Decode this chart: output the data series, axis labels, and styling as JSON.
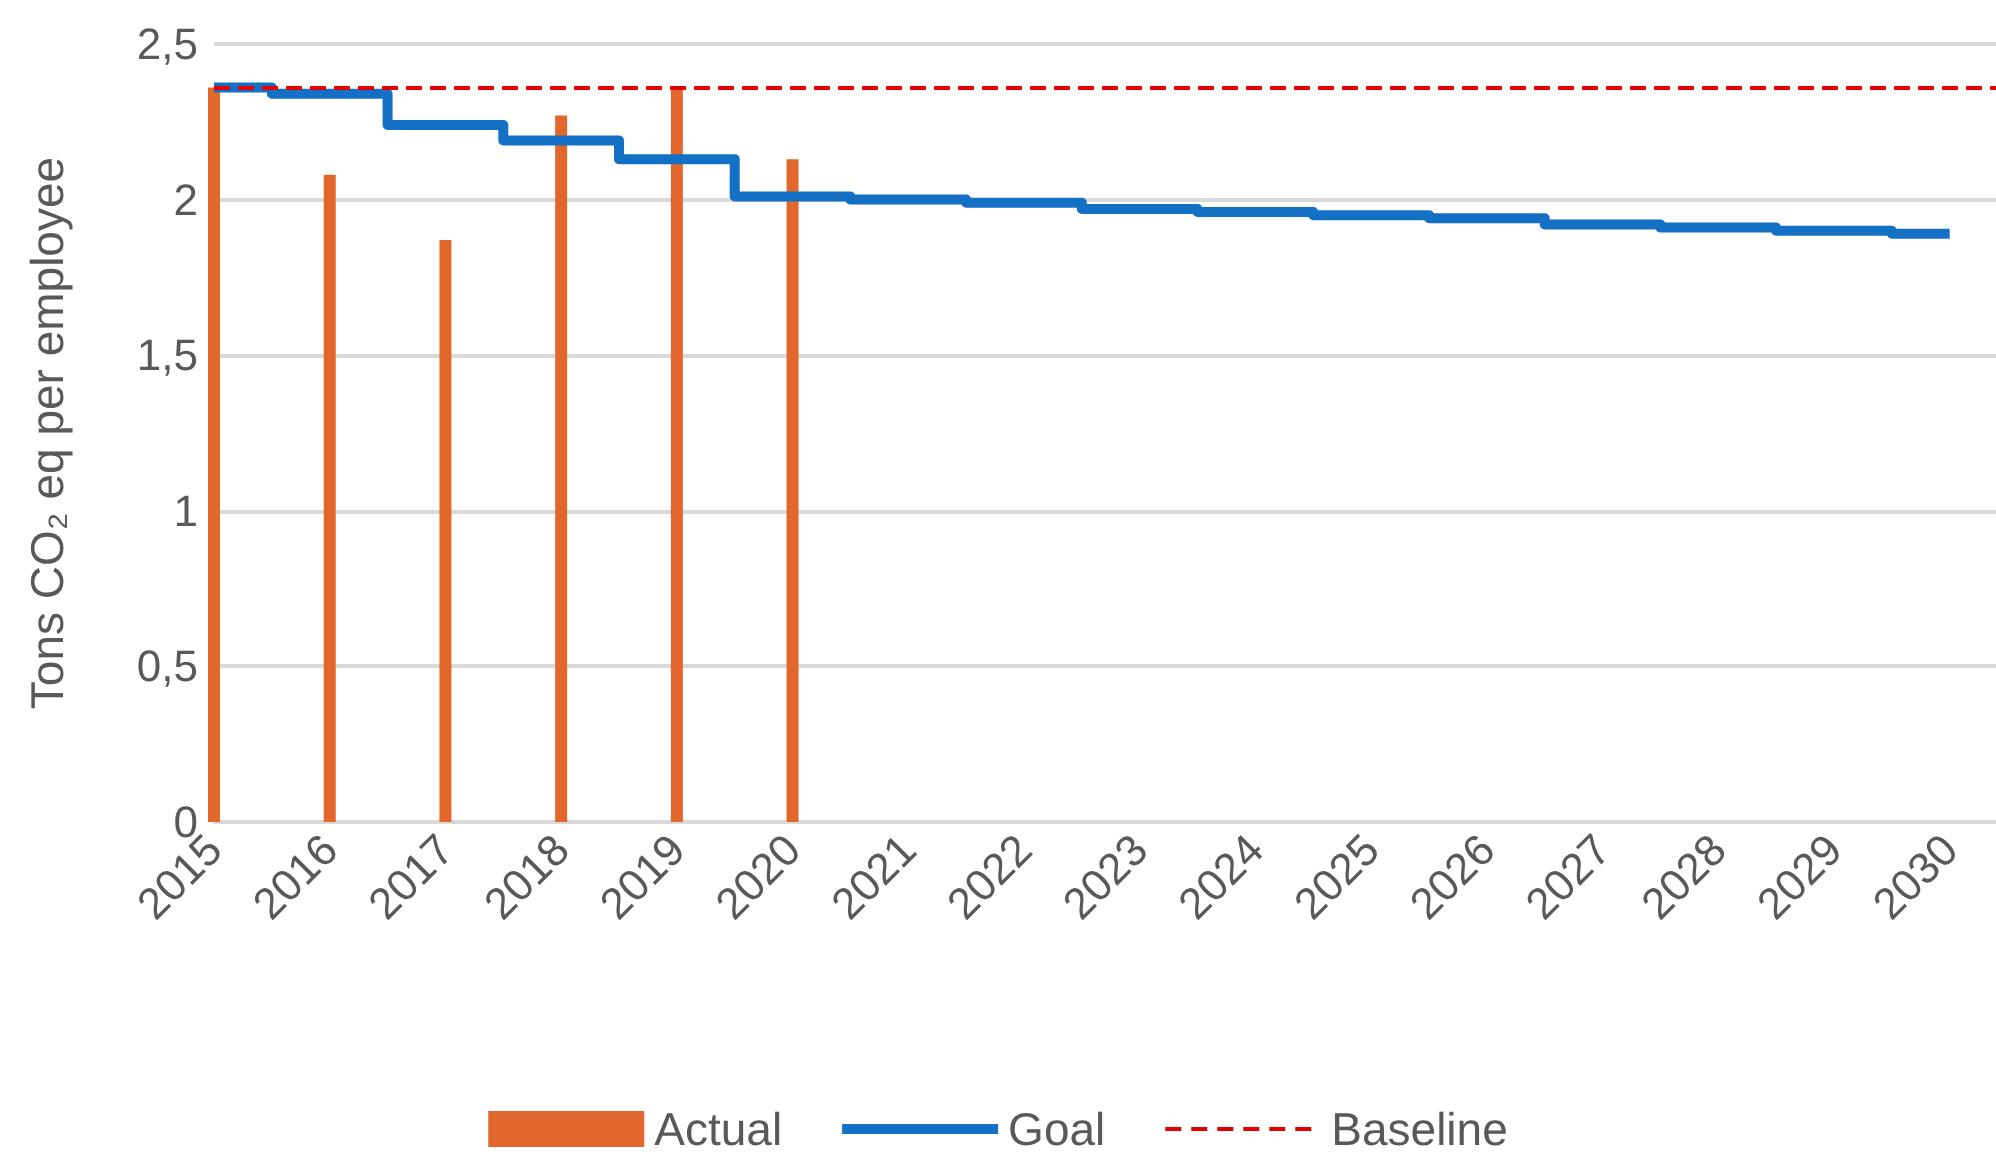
{
  "chart_data": {
    "type": "bar",
    "ylabel": "Tons CO₂ eq per employee",
    "xlim": [
      2015,
      2030.4
    ],
    "xticks": [
      2015,
      2016,
      2017,
      2018,
      2019,
      2020,
      2021,
      2022,
      2023,
      2024,
      2025,
      2026,
      2027,
      2028,
      2029,
      2030
    ],
    "ylim": [
      0,
      2.5
    ],
    "yticks": [
      0,
      {
        "value": 0.5,
        "label": "0,5"
      },
      1,
      {
        "value": 1.5,
        "label": "1,5"
      },
      2,
      {
        "value": 2.5,
        "label": "2,5"
      }
    ],
    "series": [
      {
        "name": "Actual",
        "color": "#e2672c",
        "x": [
          2015,
          2016,
          2017,
          2018,
          2019,
          2020
        ],
        "values": [
          2.36,
          2.08,
          1.87,
          2.27,
          2.36,
          2.13
        ]
      },
      {
        "name": "Goal",
        "type": "step",
        "color": "#1470c4",
        "x": [
          2015,
          2016,
          2017,
          2018,
          2019,
          2020,
          2021,
          2022,
          2023,
          2024,
          2025,
          2026,
          2027,
          2028,
          2029,
          2030
        ],
        "values": [
          2.36,
          2.34,
          2.24,
          2.19,
          2.13,
          2.01,
          2.0,
          1.99,
          1.97,
          1.96,
          1.95,
          1.94,
          1.92,
          1.91,
          1.9,
          1.89
        ]
      }
    ],
    "ref_lines": [
      {
        "axis": "y",
        "value": 2.36,
        "label": "Baseline",
        "color": "#e00000",
        "line_style": "dashed"
      }
    ],
    "grid": "y",
    "legend": "bottom",
    "marker": "none"
  }
}
